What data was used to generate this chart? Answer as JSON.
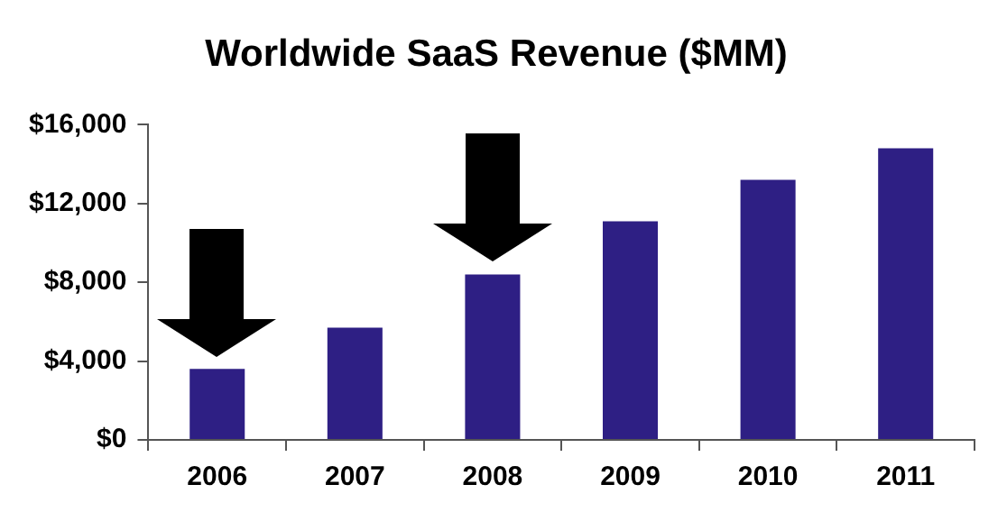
{
  "chart_data": {
    "type": "bar",
    "title": "Worldwide SaaS Revenue ($MM)",
    "categories": [
      "2006",
      "2007",
      "2008",
      "2009",
      "2010",
      "2011"
    ],
    "values": [
      3600,
      5700,
      8400,
      11100,
      13200,
      14800
    ],
    "color": "#2e1f84",
    "ylim": [
      0,
      16000
    ],
    "yticks": [
      {
        "value": 0,
        "label": "$0"
      },
      {
        "value": 4000,
        "label": "$4,000"
      },
      {
        "value": 8000,
        "label": "$8,000"
      },
      {
        "value": 12000,
        "label": "$12,000"
      },
      {
        "value": 16000,
        "label": "$16,000"
      }
    ],
    "grid": false
  }
}
